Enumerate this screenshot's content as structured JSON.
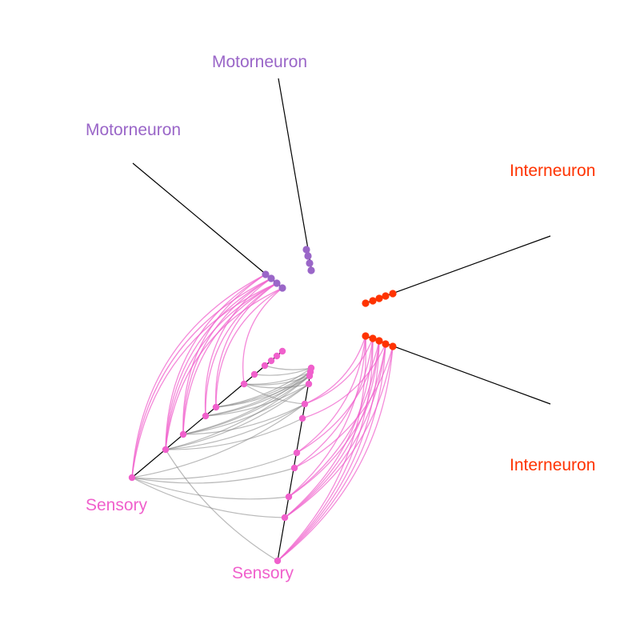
{
  "colors": {
    "motorneuron": "#9a66c8",
    "interneuron": "#ff3300",
    "sensory": "#f060cc",
    "within_sensory": "#808080",
    "axis": "#000000"
  },
  "labels": {
    "motor_a": "Motorneuron",
    "motor_b": "Motorneuron",
    "inter_a": "Interneuron",
    "inter_b": "Interneuron",
    "sens_a": "Sensory",
    "sens_b": "Sensory"
  }
}
